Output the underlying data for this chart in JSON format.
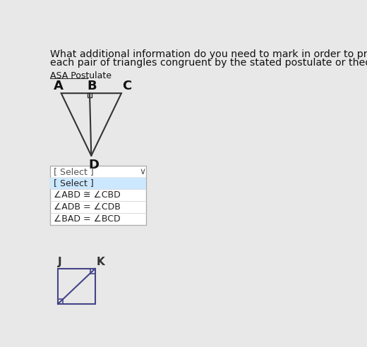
{
  "bg_color": "#e8e8e8",
  "title_line1": "What additional information do you need to mark in order to prove",
  "title_line2": "each pair of triangles congruent by the stated postulate or theorem?",
  "section_label": "ASA Postulate",
  "select_box_text": "[ Select ]",
  "dropdown_items": [
    "[ Select ]",
    "∠ABD ≅ ∠CBD",
    "∠ADB = ∠CDB",
    "∠BAD = ∠BCD"
  ],
  "dropdown_highlight_color": "#cce8ff",
  "triangle_color": "#333333",
  "second_shape_color": "#444488"
}
